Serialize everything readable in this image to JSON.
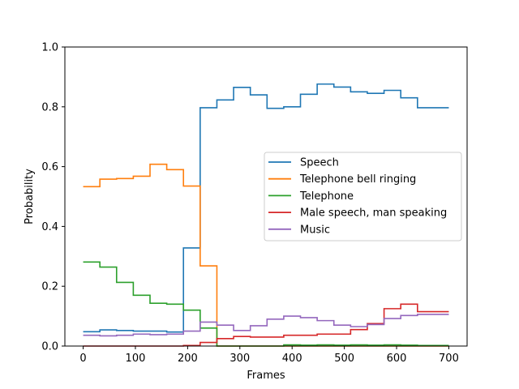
{
  "chart_data": {
    "type": "line",
    "step": "post",
    "xlabel": "Frames",
    "ylabel": "Probability",
    "xlim": [
      -35,
      735
    ],
    "ylim": [
      0,
      1.0
    ],
    "xticks": [
      0,
      100,
      200,
      300,
      400,
      500,
      600,
      700
    ],
    "yticks": [
      0.0,
      0.2,
      0.4,
      0.6,
      0.8,
      1.0
    ],
    "grid": false,
    "legend_position": "center-right",
    "x": [
      0,
      32,
      64,
      96,
      128,
      160,
      192,
      224,
      256,
      288,
      320,
      352,
      384,
      416,
      448,
      480,
      512,
      544,
      576,
      608,
      640,
      700
    ],
    "series": [
      {
        "name": "Speech",
        "color": "#1f77b4",
        "values": [
          0.048,
          0.054,
          0.052,
          0.05,
          0.05,
          0.047,
          0.328,
          0.797,
          0.823,
          0.865,
          0.84,
          0.795,
          0.8,
          0.842,
          0.876,
          0.866,
          0.85,
          0.845,
          0.855,
          0.83,
          0.797,
          0.797
        ]
      },
      {
        "name": "Telephone bell ringing",
        "color": "#ff7f0e",
        "values": [
          0.533,
          0.558,
          0.56,
          0.568,
          0.608,
          0.59,
          0.535,
          0.268,
          0.0,
          0.0,
          0.0,
          0.0,
          0.0,
          0.0,
          0.0,
          0.0,
          0.0,
          0.0,
          0.0,
          0.0,
          0.0,
          0.0
        ]
      },
      {
        "name": "Telephone",
        "color": "#2ca02c",
        "values": [
          0.281,
          0.264,
          0.213,
          0.17,
          0.143,
          0.14,
          0.12,
          0.06,
          0.0,
          0.0,
          0.0,
          0.0,
          0.004,
          0.003,
          0.004,
          0.003,
          0.004,
          0.003,
          0.004,
          0.003,
          0.002,
          0.002
        ]
      },
      {
        "name": "Male speech, man speaking",
        "color": "#d62728",
        "values": [
          0.0,
          0.0,
          0.0,
          0.0,
          0.0,
          0.0,
          0.002,
          0.012,
          0.025,
          0.032,
          0.03,
          0.03,
          0.036,
          0.036,
          0.04,
          0.04,
          0.055,
          0.075,
          0.125,
          0.14,
          0.115,
          0.115
        ]
      },
      {
        "name": "Music",
        "color": "#9467bd",
        "values": [
          0.036,
          0.034,
          0.036,
          0.04,
          0.038,
          0.04,
          0.05,
          0.08,
          0.07,
          0.052,
          0.068,
          0.09,
          0.1,
          0.095,
          0.085,
          0.07,
          0.065,
          0.072,
          0.092,
          0.102,
          0.106,
          0.106
        ]
      }
    ]
  }
}
